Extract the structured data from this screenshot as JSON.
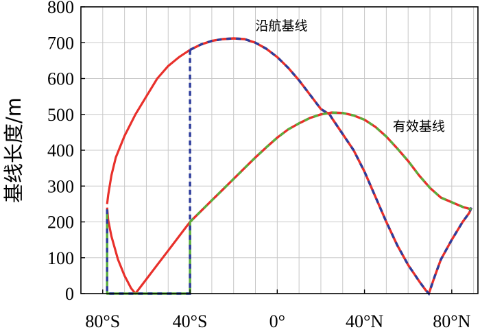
{
  "chart_data": {
    "type": "line",
    "title": "",
    "xlabel": "",
    "ylabel": "基线长度/m",
    "xlim": [
      -90,
      92
    ],
    "ylim": [
      0,
      800
    ],
    "grid": true,
    "x_ticks": [
      {
        "value": -80,
        "label": "80°S"
      },
      {
        "value": -40,
        "label": "40°S"
      },
      {
        "value": 0,
        "label": "0°"
      },
      {
        "value": 40,
        "label": "40°N"
      },
      {
        "value": 80,
        "label": "80°N"
      }
    ],
    "y_ticks": [
      0,
      100,
      200,
      300,
      400,
      500,
      600,
      700,
      800
    ],
    "annotations": [
      {
        "text": "沿航基线",
        "series": "along-track"
      },
      {
        "text": "有效基线",
        "series": "effective"
      }
    ],
    "series": [
      {
        "id": "along-track",
        "color": "#e8302b",
        "dash_color": "#2e3d9c",
        "points": [
          [
            -78,
            250
          ],
          [
            -77.5,
            275
          ],
          [
            -76,
            330
          ],
          [
            -74,
            380
          ],
          [
            -70,
            440
          ],
          [
            -65,
            500
          ],
          [
            -60,
            550
          ],
          [
            -55,
            600
          ],
          [
            -50,
            635
          ],
          [
            -45,
            660
          ],
          [
            -40,
            680
          ],
          [
            -35,
            695
          ],
          [
            -30,
            705
          ],
          [
            -25,
            710
          ],
          [
            -20,
            712
          ],
          [
            -15,
            710
          ],
          [
            -10,
            700
          ],
          [
            -5,
            683
          ],
          [
            0,
            660
          ],
          [
            5,
            630
          ],
          [
            10,
            595
          ],
          [
            15,
            555
          ],
          [
            20,
            515
          ],
          [
            24,
            500
          ],
          [
            25,
            490
          ],
          [
            30,
            445
          ],
          [
            35,
            400
          ],
          [
            40,
            340
          ],
          [
            45,
            270
          ],
          [
            50,
            200
          ],
          [
            55,
            135
          ],
          [
            60,
            80
          ],
          [
            65,
            35
          ],
          [
            68,
            10
          ],
          [
            69.5,
            0
          ],
          [
            72,
            45
          ],
          [
            75,
            95
          ],
          [
            80,
            150
          ],
          [
            85,
            200
          ],
          [
            88,
            225
          ],
          [
            89,
            240
          ]
        ],
        "solid_until_x": -40
      },
      {
        "id": "red-lower",
        "color": "#e8302b",
        "points": [
          [
            -78,
            240
          ],
          [
            -77.5,
            205
          ],
          [
            -76,
            160
          ],
          [
            -73,
            95
          ],
          [
            -70,
            50
          ],
          [
            -67,
            15
          ],
          [
            -65,
            0
          ],
          [
            -60,
            40
          ],
          [
            -55,
            80
          ],
          [
            -50,
            120
          ],
          [
            -45,
            160
          ],
          [
            -40,
            200
          ]
        ]
      },
      {
        "id": "effective",
        "color": "#e8302b",
        "dash_color": "#5aae3c",
        "points": [
          [
            -40,
            200
          ],
          [
            -35,
            230
          ],
          [
            -30,
            260
          ],
          [
            -25,
            290
          ],
          [
            -20,
            320
          ],
          [
            -15,
            350
          ],
          [
            -10,
            380
          ],
          [
            -5,
            408
          ],
          [
            0,
            435
          ],
          [
            5,
            458
          ],
          [
            10,
            475
          ],
          [
            15,
            490
          ],
          [
            20,
            500
          ],
          [
            25,
            505
          ],
          [
            30,
            504
          ],
          [
            35,
            497
          ],
          [
            40,
            485
          ],
          [
            45,
            465
          ],
          [
            50,
            438
          ],
          [
            55,
            405
          ],
          [
            60,
            370
          ],
          [
            65,
            330
          ],
          [
            70,
            295
          ],
          [
            75,
            268
          ],
          [
            80,
            255
          ],
          [
            85,
            242
          ],
          [
            89,
            235
          ]
        ]
      },
      {
        "id": "blue-vertical",
        "color": "#2e3d9c",
        "dashed": true,
        "points": [
          [
            -40,
            680
          ],
          [
            -40,
            200
          ]
        ]
      },
      {
        "id": "green-window",
        "color": "#5aae3c",
        "dash_color": "#2e3d9c",
        "points": [
          [
            -78,
            235
          ],
          [
            -78,
            0
          ],
          [
            -40,
            0
          ],
          [
            -40,
            200
          ]
        ]
      }
    ]
  }
}
